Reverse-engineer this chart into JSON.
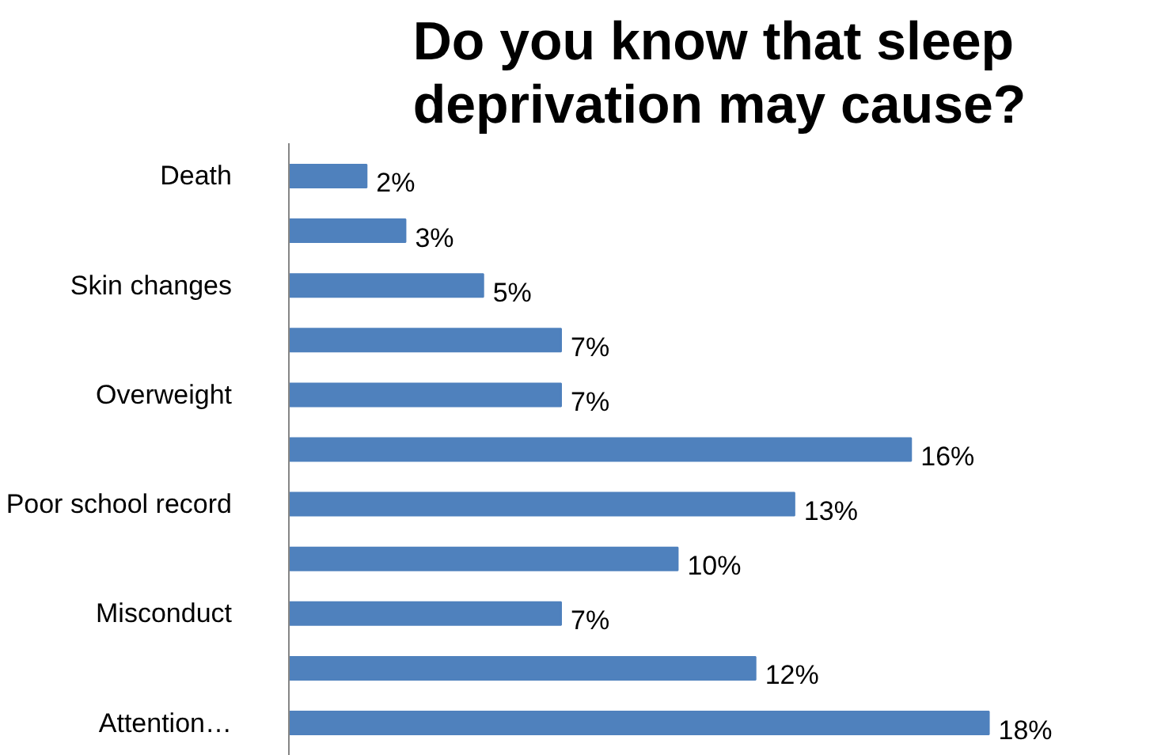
{
  "chart_data": {
    "type": "bar",
    "orientation": "horizontal",
    "title": "Do you know that sleep deprivation may cause?",
    "categories": [
      "Death",
      null,
      "Skin changes",
      null,
      "Overweight",
      null,
      "Poor school record",
      null,
      "Misconduct",
      null,
      "Attention…"
    ],
    "values": [
      2,
      3,
      5,
      7,
      7,
      16,
      13,
      10,
      7,
      12,
      18
    ],
    "value_labels": [
      "2%",
      "3%",
      "5%",
      "7%",
      "7%",
      "16%",
      "13%",
      "10%",
      "7%",
      "12%",
      "18%"
    ],
    "color": "#4f81bd",
    "grid": false
  }
}
